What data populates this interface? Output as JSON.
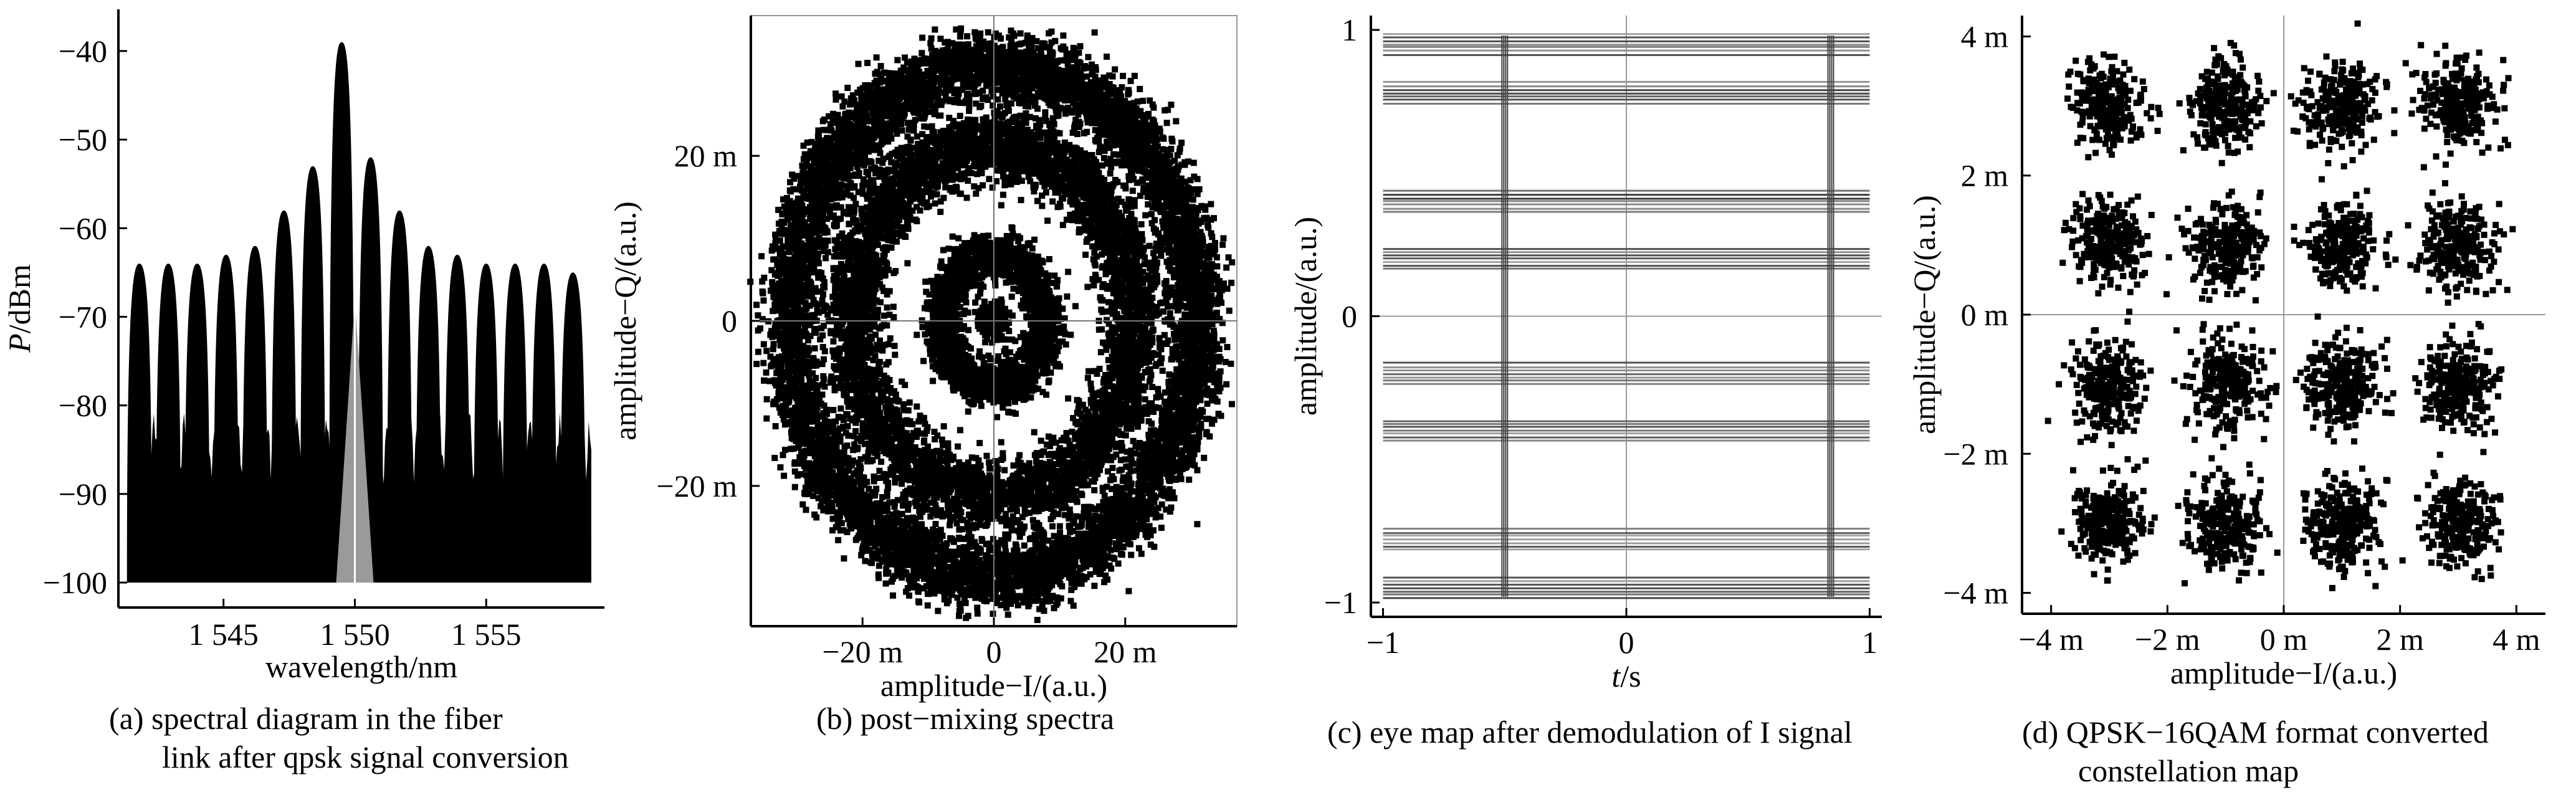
{
  "chart_data": [
    {
      "panel": "a",
      "type": "area",
      "caption_lines": [
        "(a) spectral diagram in the fiber",
        "link after qpsk signal conversion"
      ],
      "xlabel": "wavelength/nm",
      "ylabel_italic": "P",
      "ylabel_rest": "/dBm",
      "xlim": [
        1541.0,
        1559.5
      ],
      "ylim": [
        -100,
        -36
      ],
      "xticks": [
        1545,
        1550,
        1555
      ],
      "xtick_labels": [
        "1 545",
        "1 550",
        "1 555"
      ],
      "yticks": [
        -40,
        -50,
        -60,
        -70,
        -80,
        -90,
        -100
      ],
      "ytick_labels": [
        "−40",
        "−50",
        "−60",
        "−70",
        "−80",
        "−90",
        "−100"
      ],
      "peaks": {
        "wavelength": [
          1541.8,
          1542.9,
          1544.0,
          1545.1,
          1546.2,
          1547.3,
          1548.4,
          1549.5,
          1550.6,
          1551.7,
          1552.8,
          1553.9,
          1555.0,
          1556.1,
          1557.2,
          1558.3
        ],
        "peak_dBm": [
          -64,
          -64,
          -64,
          -63,
          -62,
          -58,
          -53,
          -39,
          -52,
          -58,
          -62,
          -63,
          -64,
          -64,
          -64,
          -65
        ]
      },
      "grid": false
    },
    {
      "panel": "b",
      "type": "scatter",
      "caption_lines": [
        "(b) post−mixing spectra"
      ],
      "xlabel": "amplitude−I/(a.u.)",
      "ylabel": "amplitude−Q/(a.u.)",
      "xlim": [
        -0.037,
        0.037
      ],
      "ylim": [
        -0.037,
        0.037
      ],
      "xticks": [
        -0.02,
        0,
        0.02
      ],
      "xtick_labels": [
        "−20 m",
        "0",
        "20 m"
      ],
      "yticks": [
        0.02,
        0,
        -0.02
      ],
      "ytick_labels": [
        "20 m",
        "0",
        "−20 m"
      ],
      "rings": [
        {
          "radius": 0.0,
          "spread": 0.0012
        },
        {
          "radius": 0.008,
          "spread": 0.0014
        },
        {
          "radius": 0.0215,
          "spread": 0.0022
        },
        {
          "radius": 0.031,
          "spread": 0.002
        }
      ],
      "grid": false
    },
    {
      "panel": "c",
      "type": "line",
      "caption_lines": [
        "(c) eye map after demodulation of I signal"
      ],
      "xlabel_italic": "t",
      "xlabel_rest": "/s",
      "ylabel": "amplitude/(a.u.)",
      "xlim": [
        -1.05,
        1.05
      ],
      "ylim": [
        -1.05,
        1.05
      ],
      "xticks": [
        -1,
        0,
        1
      ],
      "xtick_labels": [
        "−1",
        "0",
        "1"
      ],
      "yticks": [
        1,
        0,
        -1
      ],
      "ytick_labels": [
        "1",
        "0",
        "−1"
      ],
      "transitions_t": [
        -0.5,
        0.84
      ],
      "levels": [
        0.95,
        0.78,
        0.4,
        0.2,
        -0.2,
        -0.4,
        -0.78,
        -0.95
      ],
      "grid": false
    },
    {
      "panel": "d",
      "type": "scatter",
      "caption_lines": [
        "(d) QPSK−16QAM format converted",
        "constellation map"
      ],
      "xlabel": "amplitude−I/(a.u.)",
      "ylabel": "amplitude−Q/(a.u.)",
      "xlim": [
        -0.0045,
        0.0045
      ],
      "ylim": [
        -0.0043,
        0.0043
      ],
      "xticks": [
        -0.004,
        -0.002,
        0,
        0.002,
        0.004
      ],
      "xtick_labels": [
        "−4 m",
        "−2 m",
        "0 m",
        "2 m",
        "4 m"
      ],
      "yticks": [
        0.004,
        0.002,
        0,
        -0.002,
        -0.004
      ],
      "ytick_labels": [
        "4 m",
        "2 m",
        "0 m",
        "−2 m",
        "−4 m"
      ],
      "cluster_centers": [
        -0.003,
        -0.001,
        0.001,
        0.003
      ],
      "cluster_spread": 0.0005,
      "grid": false
    }
  ]
}
